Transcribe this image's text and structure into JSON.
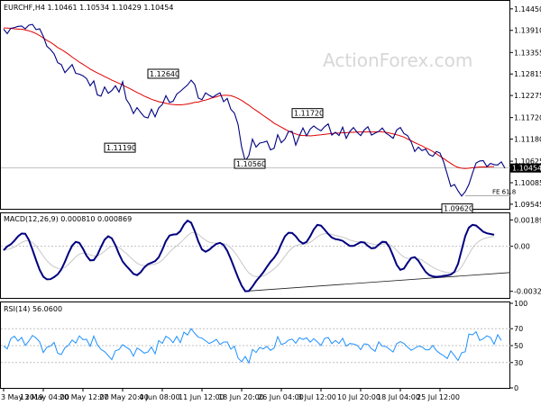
{
  "chart_data": [
    {
      "panel": "price",
      "type": "line",
      "title": "EURCHF,H4  1.10461  1.10534  1.10429  1.10454",
      "watermark": "ActionForex.com",
      "ylim": [
        1.0943,
        1.1465
      ],
      "yticks": [
        "1.14450",
        "1.13910",
        "1.13355",
        "1.12815",
        "1.12275",
        "1.11720",
        "1.11180",
        "1.10625",
        "1.10085",
        "1.09545"
      ],
      "last_price": "1.10454",
      "annotations": [
        {
          "label": "1.12640",
          "x": 50,
          "y": 1.1264
        },
        {
          "label": "1.11190",
          "x": 35,
          "y": 1.1119
        },
        {
          "label": "1.11720",
          "x": 86,
          "y": 1.1172
        },
        {
          "label": "1.10560",
          "x": 74,
          "y": 1.1056
        },
        {
          "label": "1.09620",
          "x": 129,
          "y": 1.0962
        },
        {
          "label": "FE 61.8",
          "x": 134,
          "y": 1.0976
        }
      ],
      "fe_level": 1.0976,
      "close": [
        1.1394,
        1.1383,
        1.1396,
        1.1398,
        1.1401,
        1.1402,
        1.1395,
        1.1404,
        1.1406,
        1.1393,
        1.1395,
        1.1376,
        1.1351,
        1.1343,
        1.1332,
        1.131,
        1.1305,
        1.1285,
        1.1295,
        1.1305,
        1.1283,
        1.1281,
        1.1277,
        1.127,
        1.1252,
        1.1264,
        1.1229,
        1.1226,
        1.1249,
        1.1233,
        1.124,
        1.1252,
        1.1236,
        1.1262,
        1.1218,
        1.1204,
        1.1182,
        1.1197,
        1.1185,
        1.1174,
        1.1171,
        1.1193,
        1.1174,
        1.1196,
        1.1205,
        1.1227,
        1.121,
        1.1213,
        1.1231,
        1.1238,
        1.1246,
        1.1254,
        1.1266,
        1.1255,
        1.1221,
        1.1217,
        1.1234,
        1.1228,
        1.1223,
        1.1229,
        1.1234,
        1.1212,
        1.122,
        1.1193,
        1.1183,
        1.1155,
        1.1098,
        1.1063,
        1.1077,
        1.1118,
        1.1098,
        1.1108,
        1.111,
        1.1113,
        1.1091,
        1.1095,
        1.1129,
        1.1109,
        1.1118,
        1.1137,
        1.1137,
        1.1103,
        1.1126,
        1.1146,
        1.1126,
        1.1143,
        1.1151,
        1.1144,
        1.1139,
        1.1149,
        1.1156,
        1.1128,
        1.1135,
        1.1127,
        1.1148,
        1.112,
        1.1137,
        1.1147,
        1.1135,
        1.1127,
        1.1141,
        1.1149,
        1.1128,
        1.1133,
        1.1137,
        1.1146,
        1.1133,
        1.1127,
        1.112,
        1.1141,
        1.1147,
        1.1132,
        1.1127,
        1.1111,
        1.1087,
        1.1098,
        1.1089,
        1.1093,
        1.1079,
        1.1075,
        1.1087,
        1.1083,
        1.1061,
        1.103,
        1.0999,
        1.1004,
        1.0988,
        1.0975,
        1.0986,
        1.1004,
        1.1032,
        1.1058,
        1.1063,
        1.1064,
        1.1049,
        1.1057,
        1.1054,
        1.1053,
        1.1061,
        1.1045
      ],
      "sma": [
        1.1397,
        1.1397,
        1.1396,
        1.1395,
        1.1394,
        1.1394,
        1.1392,
        1.139,
        1.1387,
        1.1383,
        1.1378,
        1.1372,
        1.1366,
        1.1361,
        1.1355,
        1.1348,
        1.1343,
        1.1337,
        1.1331,
        1.1324,
        1.1318,
        1.1311,
        1.1306,
        1.13,
        1.1294,
        1.1289,
        1.1284,
        1.128,
        1.1275,
        1.1271,
        1.1266,
        1.1262,
        1.1258,
        1.1254,
        1.1249,
        1.1245,
        1.124,
        1.1235,
        1.1231,
        1.1226,
        1.1222,
        1.1218,
        1.1215,
        1.1212,
        1.121,
        1.1208,
        1.1206,
        1.1205,
        1.1204,
        1.1204,
        1.1205,
        1.1206,
        1.1208,
        1.121,
        1.1211,
        1.1214,
        1.1216,
        1.1219,
        1.1222,
        1.1224,
        1.1227,
        1.1228,
        1.1228,
        1.1227,
        1.1224,
        1.122,
        1.1215,
        1.1209,
        1.1203,
        1.1196,
        1.119,
        1.1184,
        1.1177,
        1.1171,
        1.1165,
        1.1158,
        1.1153,
        1.1148,
        1.1143,
        1.1138,
        1.1134,
        1.1131,
        1.1128,
        1.1127,
        1.1127,
        1.1126,
        1.1127,
        1.1128,
        1.1129,
        1.113,
        1.1131,
        1.1132,
        1.1133,
        1.1133,
        1.1134,
        1.1134,
        1.1135,
        1.1135,
        1.1136,
        1.1136,
        1.1136,
        1.1136,
        1.1136,
        1.1136,
        1.1137,
        1.1136,
        1.1135,
        1.1133,
        1.1131,
        1.1129,
        1.1126,
        1.1123,
        1.1118,
        1.1114,
        1.1109,
        1.1105,
        1.1101,
        1.1096,
        1.1092,
        1.1087,
        1.1081,
        1.1075,
        1.1069,
        1.1063,
        1.1057,
        1.1051,
        1.1047,
        1.1045,
        1.1044,
        1.1045,
        1.1046,
        1.1047,
        1.1048,
        1.1048,
        1.1048,
        1.1049,
        1.1049
      ]
    },
    {
      "panel": "macd",
      "type": "line",
      "title": "MACD(12,26,9) 0.000810 0.000869",
      "ylim": [
        -0.0037,
        0.0023
      ],
      "yticks": [
        "0.001891",
        "0.00",
        "-0.003228"
      ],
      "macd": [
        -0.00029,
        -1e-05,
        0.00014,
        0.0004,
        0.00071,
        0.00091,
        0.0009,
        0.00046,
        -0.00024,
        -0.00099,
        -0.00169,
        -0.00218,
        -0.00237,
        -0.00236,
        -0.00221,
        -0.00201,
        -0.00166,
        -0.00111,
        -0.00049,
        4e-05,
        0.00032,
        0.00024,
        -0.00017,
        -0.00068,
        -0.00101,
        -0.00099,
        -0.00062,
        -5e-05,
        0.00047,
        0.00072,
        0.00057,
        8e-05,
        -0.00055,
        -0.00109,
        -0.00141,
        -0.00168,
        -0.00198,
        -0.00207,
        -0.00186,
        -0.00152,
        -0.00129,
        -0.00118,
        -0.00107,
        -0.00079,
        -0.00025,
        0.00037,
        0.00077,
        0.00084,
        0.00086,
        0.00109,
        0.00155,
        0.00184,
        0.00169,
        0.00109,
        0.00034,
        -0.00023,
        -0.00039,
        -0.00025,
        -2e-05,
        0.00017,
        0.00025,
        9e-05,
        -0.00032,
        -0.00091,
        -0.00158,
        -0.00224,
        -0.00282,
        -0.00322,
        -0.00321,
        -0.00289,
        -0.0025,
        -0.00219,
        -0.00187,
        -0.00148,
        -0.00111,
        -0.00082,
        -0.00043,
        0.00017,
        0.00071,
        0.00097,
        0.00095,
        0.00072,
        0.00038,
        0.0002,
        0.00031,
        0.00071,
        0.00121,
        0.00153,
        0.00148,
        0.0012,
        0.00088,
        0.00063,
        0.00051,
        0.00047,
        0.00039,
        0.0002,
        3e-05,
        2e-05,
        0.00016,
        0.0003,
        0.00027,
        3e-05,
        -0.00015,
        -0.00011,
        0.00011,
        0.00032,
        0.0003,
        -7e-05,
        -0.00068,
        -0.00133,
        -0.00169,
        -0.0016,
        -0.00119,
        -0.00084,
        -0.00078,
        -0.00103,
        -0.00145,
        -0.00183,
        -0.00206,
        -0.00216,
        -0.00219,
        -0.00217,
        -0.00212,
        -0.00209,
        -0.00203,
        -0.00183,
        -0.00126,
        -0.00027,
        0.00073,
        0.00134,
        0.00154,
        0.00149,
        0.00127,
        0.00104,
        0.00093,
        0.00088,
        0.00082
      ]
    },
    {
      "panel": "rsi",
      "type": "line",
      "title": "RSI(14) 56.0600",
      "ylim": [
        0,
        100
      ],
      "yticks": [
        "100",
        "70",
        "50",
        "30",
        "0"
      ],
      "rsi": [
        49.6,
        46.1,
        58.3,
        61.1,
        55.3,
        59.7,
        50.2,
        55.3,
        62,
        59,
        54.4,
        41.8,
        48.1,
        49.4,
        53.7,
        40.9,
        39.5,
        47.4,
        50.3,
        56.7,
        53,
        61.5,
        57.1,
        57.4,
        49.2,
        61.3,
        51,
        45.4,
        42.9,
        38.3,
        33.4,
        43.9,
        45.2,
        51.1,
        48.1,
        45.3,
        37.4,
        47.1,
        44.5,
        41.1,
        42.5,
        48.3,
        40.2,
        56,
        52.7,
        61.1,
        58.4,
        53.4,
        60.8,
        53.5,
        65.9,
        62.6,
        70.1,
        64.5,
        59.9,
        58.8,
        55.7,
        52.4,
        54.6,
        57.3,
        51.3,
        54.2,
        54.4,
        45.7,
        49.3,
        35.3,
        30.8,
        37.1,
        29.5,
        45.4,
        41.8,
        47.9,
        46.1,
        49.1,
        44.4,
        47.1,
        60.5,
        51.3,
        52.9,
        56.5,
        57.7,
        52.9,
        59.3,
        57.2,
        59.1,
        54.1,
        58.2,
        54.4,
        50.1,
        58.5,
        59.6,
        52.3,
        56.1,
        52.6,
        58.6,
        49.4,
        52.4,
        51.9,
        50.5,
        45.2,
        52.1,
        51.5,
        46.4,
        43.3,
        54.4,
        49.3,
        48.9,
        45.6,
        42.4,
        52.3,
        54.7,
        52.4,
        48.3,
        44.4,
        46.8,
        49.4,
        48.5,
        45.1,
        45.1,
        50.2,
        44.1,
        40.6,
        38.2,
        34.7,
        43.7,
        38.2,
        32.4,
        41.6,
        42.8,
        63.7,
        62.7,
        66.4,
        56.2,
        58,
        61.6,
        59.6,
        51.6,
        62.9,
        56.1
      ]
    }
  ],
  "x_axis": {
    "tick_labels": [
      "3 May 2019",
      "13 May 04:00",
      "20 May 12:00",
      "27 May 20:00",
      "4 Jun 08:00",
      "11 Jun 12:00",
      "18 Jun 20:00",
      "26 Jun 04:00",
      "3 Jul 12:00",
      "10 Jul 20:00",
      "18 Jul 04:00",
      "25 Jul 12:00"
    ],
    "tick_index": [
      0,
      11,
      22,
      33,
      44,
      55,
      66,
      77,
      88,
      99,
      110,
      121
    ]
  },
  "colors": {
    "price_line": "#000080",
    "sma": "#e00000",
    "macd": "#000080",
    "signal": "#c8c8c8",
    "rsi": "#1e90ff",
    "grid": "#c0c0c0",
    "last_price_box": "#000000"
  }
}
